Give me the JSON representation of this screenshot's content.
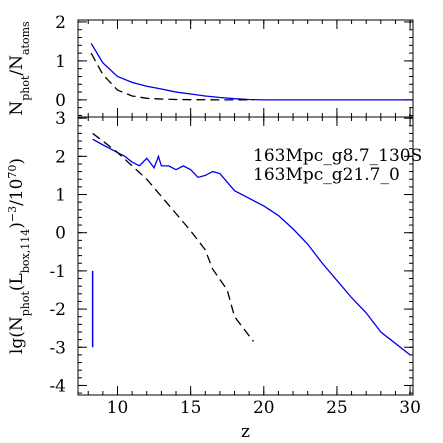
{
  "chart_data": [
    {
      "type": "line",
      "ylabel_parts": [
        {
          "text": "N"
        },
        {
          "text": "phot",
          "shift": "sub"
        },
        {
          "text": "/N"
        },
        {
          "text": "atoms",
          "shift": "sub"
        }
      ],
      "xlim": [
        7.3,
        30.2
      ],
      "ylim": [
        -0.44,
        2.05
      ],
      "xticks": [
        10,
        15,
        20,
        25,
        30
      ],
      "xtick_labels": false,
      "x_minor_step": 1,
      "yticks": [
        0,
        1,
        2
      ],
      "y_minor_step": 0.2,
      "series": [
        {
          "name": "163Mpc_g8.7_130S",
          "color": "#0000ee",
          "linestyle": "solid",
          "x": [
            8.2,
            9,
            10,
            11,
            12,
            13,
            14,
            15,
            16,
            17,
            18,
            19,
            20,
            22,
            25,
            30
          ],
          "values": [
            1.45,
            0.95,
            0.6,
            0.45,
            0.35,
            0.28,
            0.2,
            0.15,
            0.1,
            0.06,
            0.03,
            0.01,
            0,
            0,
            0,
            0
          ]
        },
        {
          "name": "163Mpc_g21.7_0",
          "color": "#000000",
          "linestyle": "dashed",
          "x": [
            8.2,
            9,
            10,
            11,
            12,
            13,
            14,
            15,
            17,
            19.3
          ],
          "values": [
            1.2,
            0.65,
            0.25,
            0.1,
            0.04,
            0.02,
            0.01,
            0.005,
            0,
            0
          ]
        }
      ]
    },
    {
      "type": "line",
      "xlabel": "z",
      "ylabel_parts": [
        {
          "text": "lg(N"
        },
        {
          "text": "phot",
          "shift": "sub"
        },
        {
          "text": "(L"
        },
        {
          "text": "box,114",
          "shift": "sub"
        },
        {
          "text": ")"
        },
        {
          "text": "−3",
          "shift": "super"
        },
        {
          "text": "/10"
        },
        {
          "text": "70",
          "shift": "super"
        },
        {
          "text": ")"
        }
      ],
      "xlim": [
        7.3,
        30.2
      ],
      "ylim": [
        -4.25,
        3.03
      ],
      "xticks": [
        10,
        15,
        20,
        25,
        30
      ],
      "xtick_labels": true,
      "x_minor_step": 1,
      "yticks": [
        -4,
        -3,
        -2,
        -1,
        0,
        1,
        2,
        3
      ],
      "y_minor_step": 0.2,
      "legend": "upper right",
      "series": [
        {
          "name": "163Mpc_g8.7_130S",
          "color": "#0000ee",
          "linestyle": "solid",
          "x": [
            8.3,
            9,
            9.5,
            10,
            10.5,
            11,
            11.5,
            12,
            12.5,
            12.8,
            13,
            13.5,
            14,
            14.5,
            15,
            15.5,
            16,
            16.5,
            17,
            18,
            19,
            20,
            21,
            22,
            23,
            24,
            25,
            26,
            27,
            28,
            29,
            30
          ],
          "values": [
            2.45,
            2.3,
            2.2,
            2.1,
            2.0,
            1.85,
            1.75,
            1.95,
            1.7,
            2.0,
            1.75,
            1.75,
            1.65,
            1.75,
            1.65,
            1.45,
            1.5,
            1.6,
            1.55,
            1.1,
            0.9,
            0.7,
            0.45,
            0.1,
            -0.3,
            -0.8,
            -1.25,
            -1.7,
            -2.1,
            -2.6,
            -2.9,
            -3.2
          ]
        },
        {
          "name": "163Mpc_g21.7_0",
          "color": "#000000",
          "linestyle": "dashed",
          "x": [
            8.3,
            9,
            10,
            11,
            12,
            13,
            14,
            15,
            16,
            16.5,
            17.5,
            18,
            19.3
          ],
          "values": [
            2.6,
            2.4,
            2.1,
            1.75,
            1.4,
            0.95,
            0.5,
            0.05,
            -0.45,
            -0.95,
            -1.5,
            -2.2,
            -2.85
          ]
        }
      ],
      "error_bar": {
        "x": 8.3,
        "low": -3,
        "high": -1,
        "color": "#0000ee"
      }
    }
  ]
}
